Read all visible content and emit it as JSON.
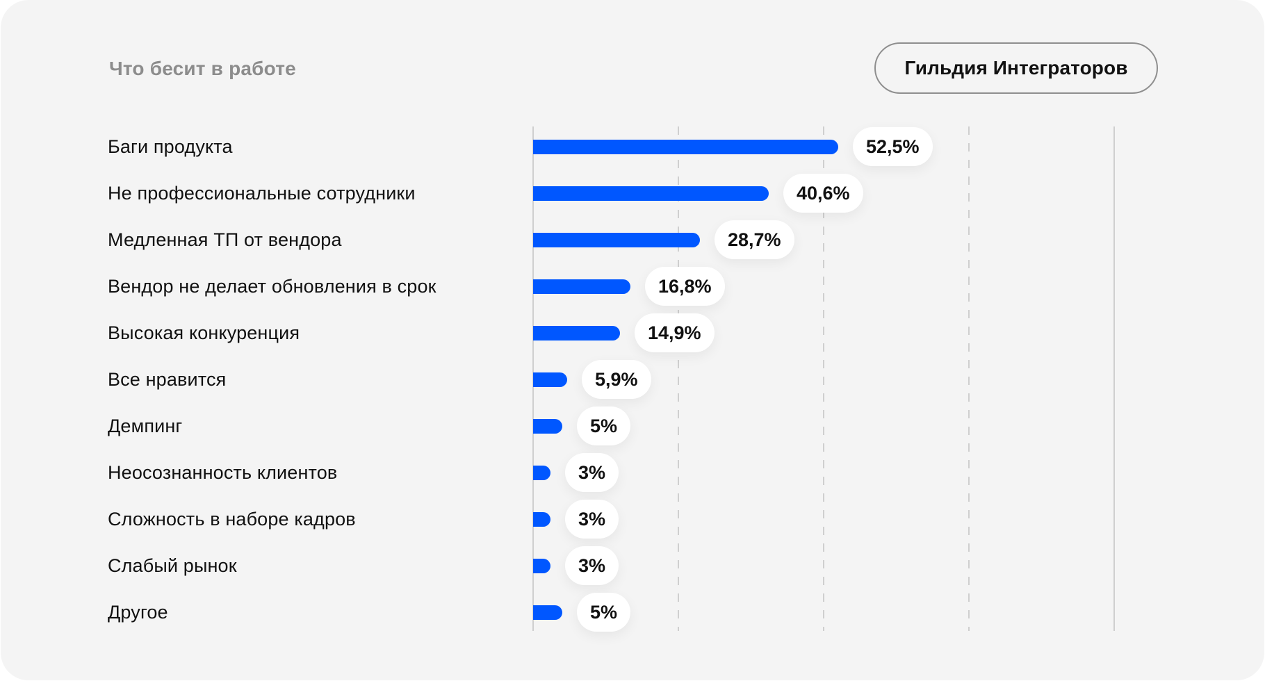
{
  "header": {
    "title": "Что бесит в работе",
    "org_button_label": "Гильдия Интеграторов"
  },
  "colors": {
    "bar": "#0057ff",
    "card_background": "#f4f4f4",
    "title": "#8c8c8c",
    "text": "#111111",
    "gridline": "#cfcfcf"
  },
  "rows": [
    {
      "label": "Баги продукта",
      "value": 52.5,
      "value_label": "52,5%"
    },
    {
      "label": "Не профессиональные сотрудники",
      "value": 40.6,
      "value_label": "40,6%"
    },
    {
      "label": "Медленная ТП от вендора",
      "value": 28.7,
      "value_label": "28,7%"
    },
    {
      "label": "Вендор не делает обновления в срок",
      "value": 16.8,
      "value_label": "16,8%"
    },
    {
      "label": "Высокая конкуренция",
      "value": 14.9,
      "value_label": "14,9%"
    },
    {
      "label": "Все нравится",
      "value": 5.9,
      "value_label": "5,9%"
    },
    {
      "label": "Демпинг",
      "value": 5,
      "value_label": "5%"
    },
    {
      "label": "Неосознанность клиентов",
      "value": 3,
      "value_label": "3%"
    },
    {
      "label": "Сложность в наборе кадров",
      "value": 3,
      "value_label": "3%"
    },
    {
      "label": "Слабый рынок",
      "value": 3,
      "value_label": "3%"
    },
    {
      "label": "Другое",
      "value": 5,
      "value_label": "5%"
    }
  ],
  "chart_data": {
    "type": "bar",
    "orientation": "horizontal",
    "title": "Что бесит в работе",
    "subtitle": "Гильдия Интеграторов",
    "categories": [
      "Баги продукта",
      "Не профессиональные сотрудники",
      "Медленная ТП от вендора",
      "Вендор не делает обновления в срок",
      "Высокая конкуренция",
      "Все нравится",
      "Демпинг",
      "Неосознанность клиентов",
      "Сложность в наборе кадров",
      "Слабый рынок",
      "Другое"
    ],
    "values": [
      52.5,
      40.6,
      28.7,
      16.8,
      14.9,
      5.9,
      5,
      3,
      3,
      3,
      5
    ],
    "data_labels": [
      "52,5%",
      "40,6%",
      "28,7%",
      "16,8%",
      "14,9%",
      "5,9%",
      "5%",
      "3%",
      "3%",
      "3%",
      "5%"
    ],
    "unit": "%",
    "xlabel": "",
    "ylabel": "",
    "xlim": [
      0,
      100
    ],
    "gridlines": [
      25,
      50,
      75
    ],
    "grid": true,
    "grid_style": "dashed",
    "legend": null
  }
}
